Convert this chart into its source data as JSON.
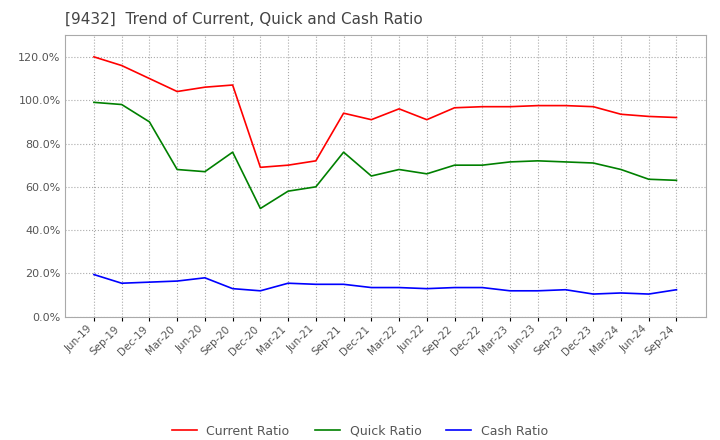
{
  "title": "[9432]  Trend of Current, Quick and Cash Ratio",
  "x_labels": [
    "Jun-19",
    "Sep-19",
    "Dec-19",
    "Mar-20",
    "Jun-20",
    "Sep-20",
    "Dec-20",
    "Mar-21",
    "Jun-21",
    "Sep-21",
    "Dec-21",
    "Mar-22",
    "Jun-22",
    "Sep-22",
    "Dec-22",
    "Mar-23",
    "Jun-23",
    "Sep-23",
    "Dec-23",
    "Mar-24",
    "Jun-24",
    "Sep-24"
  ],
  "current_ratio": [
    120.0,
    116.0,
    110.0,
    104.0,
    106.0,
    107.0,
    69.0,
    70.0,
    72.0,
    94.0,
    91.0,
    96.0,
    91.0,
    96.5,
    97.0,
    97.0,
    97.5,
    97.5,
    97.0,
    93.5,
    92.5,
    92.0
  ],
  "quick_ratio": [
    99.0,
    98.0,
    90.0,
    68.0,
    67.0,
    76.0,
    50.0,
    58.0,
    60.0,
    76.0,
    65.0,
    68.0,
    66.0,
    70.0,
    70.0,
    71.5,
    72.0,
    71.5,
    71.0,
    68.0,
    63.5,
    63.0
  ],
  "cash_ratio": [
    19.5,
    15.5,
    16.0,
    16.5,
    18.0,
    13.0,
    12.0,
    15.5,
    15.0,
    15.0,
    13.5,
    13.5,
    13.0,
    13.5,
    13.5,
    12.0,
    12.0,
    12.5,
    10.5,
    11.0,
    10.5,
    12.5
  ],
  "current_color": "#ff0000",
  "quick_color": "#008000",
  "cash_color": "#0000ff",
  "ylim": [
    0.0,
    130.0
  ],
  "yticks": [
    0.0,
    20.0,
    40.0,
    60.0,
    80.0,
    100.0,
    120.0
  ],
  "background_color": "#ffffff",
  "title_fontsize": 11,
  "legend_labels": [
    "Current Ratio",
    "Quick Ratio",
    "Cash Ratio"
  ]
}
